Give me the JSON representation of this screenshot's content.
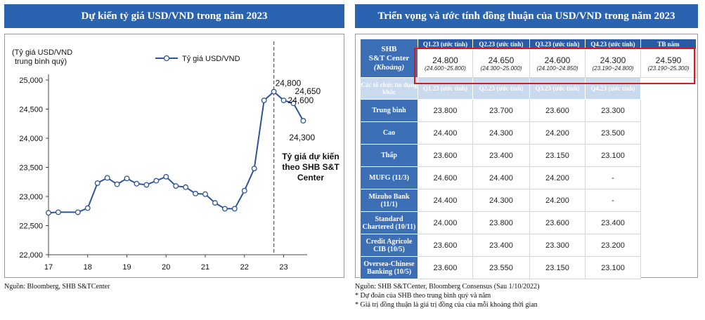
{
  "left_panel": {
    "title": "Dự kiến tỷ giá USD/VND trong năm 2023",
    "source": "Nguồn: Bloomberg, SHB S&TCenter"
  },
  "right_panel": {
    "title": "Triển vọng và ước tính đồng thuận của USD/VND trong năm 2023",
    "shb_label_1": "SHB",
    "shb_label_2": "S&T Center",
    "shb_label_3": "(Khoảng)",
    "headers": [
      "Q1.23 (ước tính)",
      "Q2.23 (ước tính)",
      "Q3.23 (ước tính)",
      "Q4.23 (ước tính)",
      "TB năm"
    ],
    "shb_values": [
      "24.800",
      "24.650",
      "24.600",
      "24.300",
      "24.590"
    ],
    "shb_ranges": [
      "(24.600~25.800)",
      "(24.300~25.000)",
      "(24.100~24.850)",
      "(23.190~24.800)",
      "(23.190~25.300)"
    ],
    "sub_header_label": "Các tổ chức tín dụng khác",
    "sub_headers": [
      "Q1.23 (ước tính)",
      "Q2.23 (ước tính)",
      "Q3.23 (ước tính)",
      "Q4.23 (ước tính)"
    ],
    "rows": [
      {
        "label": "Trung bình",
        "values": [
          "23.800",
          "23.700",
          "23.600",
          "23.300"
        ]
      },
      {
        "label": "Cao",
        "values": [
          "24.400",
          "24.300",
          "24.200",
          "23.500"
        ]
      },
      {
        "label": "Thấp",
        "values": [
          "23.600",
          "23.400",
          "23.150",
          "23.100"
        ]
      },
      {
        "label": "MUFG (11/3)",
        "values": [
          "24.600",
          "24.400",
          "24.200",
          "-"
        ]
      },
      {
        "label": "Mizuho Bank (11/1)",
        "values": [
          "24.400",
          "24.300",
          "24.200",
          "-"
        ]
      },
      {
        "label": "Standard Chartered (10/11)",
        "values": [
          "24.000",
          "23.800",
          "23.600",
          "23.400"
        ]
      },
      {
        "label": "Credit Agricole CIB (10/5)",
        "values": [
          "23.600",
          "23.400",
          "23.300",
          "23.200"
        ]
      },
      {
        "label": "Oversea-Chinese Banking (10/5)",
        "values": [
          "23.600",
          "23.550",
          "23.150",
          "23.100"
        ]
      }
    ],
    "source_line1": "Nguồn: SHB S&TCenter, Bloomberg Consensus (Sau 1/10/2022)",
    "source_line2": "* Dự đoán của SHB theo trung bình quý và năm",
    "source_line3": "* Giá trị đồng thuận là giá trị đồng của của mỗi khoảng thời gian"
  },
  "chart_data": {
    "type": "line",
    "title": "Dự kiến tỷ giá USD/VND trong năm 2023",
    "ylabel": "(Tỷ giá USD/VND trung bình quý)",
    "ylabel_line1": "(Tỷ giá USD/VND",
    "ylabel_line2": "trung bình quý)",
    "xlabel": "",
    "legend": "Tỷ giá USD/VND",
    "legend_position": "top",
    "xlim": [
      17,
      23.6
    ],
    "ylim": [
      22000,
      25000
    ],
    "xticks": [
      17,
      18,
      19,
      20,
      21,
      22,
      23
    ],
    "yticks": [
      22000,
      22500,
      23000,
      23500,
      24000,
      24500,
      25000
    ],
    "ytick_labels": [
      "22,000",
      "22,500",
      "23,000",
      "23,500",
      "24,000",
      "24,500",
      "25,000"
    ],
    "series": [
      {
        "name": "Tỷ giá USD/VND",
        "color": "#2e5597",
        "x": [
          17,
          17.25,
          17.75,
          18,
          18.25,
          18.5,
          18.75,
          19,
          19.25,
          19.5,
          19.75,
          20,
          20.25,
          20.5,
          20.75,
          21,
          21.25,
          21.5,
          21.75,
          22,
          22.25,
          22.5,
          22.75,
          23,
          23.25,
          23.5
        ],
        "y": [
          22720,
          22730,
          22730,
          22800,
          23230,
          23320,
          23210,
          23310,
          23220,
          23200,
          23270,
          23340,
          23180,
          23160,
          23050,
          23040,
          22890,
          22790,
          22790,
          23100,
          23480,
          24650,
          24800,
          24650,
          24600,
          24300
        ]
      }
    ],
    "divider_x": 22.75,
    "divider_label": [
      "Tỷ giá dự kiến",
      "theo SHB S&T",
      "Center"
    ],
    "annotations": [
      {
        "text": "24,800",
        "x": 22.75,
        "y": 24800
      },
      {
        "text": "24,650",
        "x": 23.0,
        "y": 24650
      },
      {
        "text": "24,600",
        "x": 23.25,
        "y": 24600
      },
      {
        "text": "24,300",
        "x": 23.5,
        "y": 24300
      }
    ]
  }
}
